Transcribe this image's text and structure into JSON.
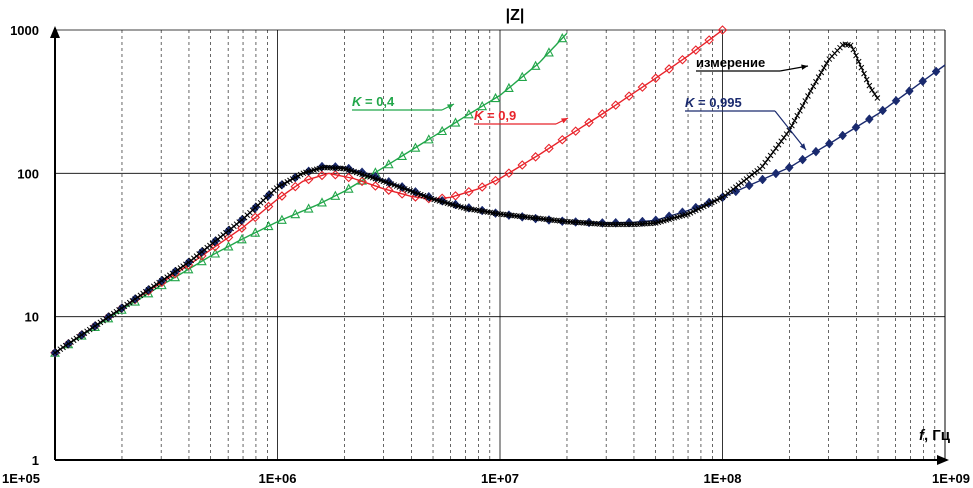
{
  "chart_data": {
    "type": "line",
    "title": "|Z|",
    "xlabel_var": "f",
    "xlabel_unit": ", Гц",
    "x_scale": "log",
    "y_scale": "log",
    "xlim": [
      100000,
      1000000000
    ],
    "ylim": [
      1,
      1000
    ],
    "x_ticks": [
      "1E+05",
      "1E+06",
      "1E+07",
      "1E+08",
      "1E+09"
    ],
    "y_ticks": [
      "1",
      "10",
      "100",
      "1000"
    ],
    "grid": "major solid, minor dashed on x",
    "series": [
      {
        "name": "K = 0,4",
        "color": "#22a64a",
        "marker": "triangle-open",
        "x": [
          100000,
          150000,
          200000,
          300000,
          400000,
          500000,
          700000,
          1000000,
          1500000,
          2000000,
          3000000,
          5000000,
          7000000,
          10000000,
          15000000,
          20000000
        ],
        "y": [
          5.6,
          8.4,
          11.2,
          16.5,
          21.5,
          26.5,
          35,
          46,
          60,
          75,
          110,
          180,
          250,
          350,
          590,
          950
        ]
      },
      {
        "name": "K = 0,9",
        "color": "#e8232a",
        "marker": "diamond-open",
        "x": [
          100000,
          200000,
          400000,
          700000,
          1000000,
          1300000,
          1700000,
          2200000,
          3000000,
          4000000,
          5000000,
          6000000,
          8000000,
          10000000,
          15000000,
          20000000,
          30000000,
          50000000,
          70000000,
          100000000
        ],
        "y": [
          5.6,
          11.5,
          23,
          42,
          66,
          88,
          100,
          92,
          78,
          69,
          66,
          68,
          78,
          92,
          135,
          180,
          270,
          460,
          660,
          1000
        ]
      },
      {
        "name": "K = 0,995",
        "color": "#1a2a6e",
        "marker": "diamond-filled",
        "x": [
          100000,
          200000,
          400000,
          700000,
          1000000,
          1300000,
          1600000,
          2000000,
          2500000,
          3000000,
          4000000,
          5000000,
          7000000,
          10000000,
          15000000,
          20000000,
          30000000,
          40000000,
          50000000,
          70000000,
          100000000,
          150000000,
          200000000,
          300000000,
          500000000,
          700000000,
          1000000000
        ],
        "y": [
          5.6,
          11.5,
          24,
          48,
          80,
          100,
          112,
          110,
          100,
          90,
          76,
          67,
          58,
          52,
          48,
          46,
          45,
          45.5,
          47,
          55,
          68,
          90,
          110,
          160,
          260,
          380,
          570
        ]
      },
      {
        "name": "измерение",
        "color": "#000000",
        "marker": "cross",
        "x": [
          100000,
          200000,
          400000,
          700000,
          1000000,
          1300000,
          1600000,
          2000000,
          3000000,
          5000000,
          7000000,
          10000000,
          20000000,
          30000000,
          40000000,
          50000000,
          70000000,
          100000000,
          150000000,
          200000000,
          250000000,
          300000000,
          350000000,
          380000000,
          420000000,
          460000000,
          500000000
        ],
        "y": [
          5.6,
          11.5,
          24,
          48,
          80,
          100,
          110,
          108,
          88,
          66,
          57,
          52,
          46,
          44,
          44,
          45,
          52,
          68,
          110,
          200,
          380,
          620,
          800,
          780,
          550,
          400,
          330
        ]
      }
    ],
    "annotations": [
      {
        "var": "K",
        "text": " = 0,4",
        "color": "#22a64a"
      },
      {
        "var": "K",
        "text": " = 0,9",
        "color": "#e8232a"
      },
      {
        "var": "K",
        "text": " = 0,995",
        "color": "#1a2a6e"
      },
      {
        "var": "",
        "text": "измерение",
        "color": "#000000"
      }
    ]
  }
}
